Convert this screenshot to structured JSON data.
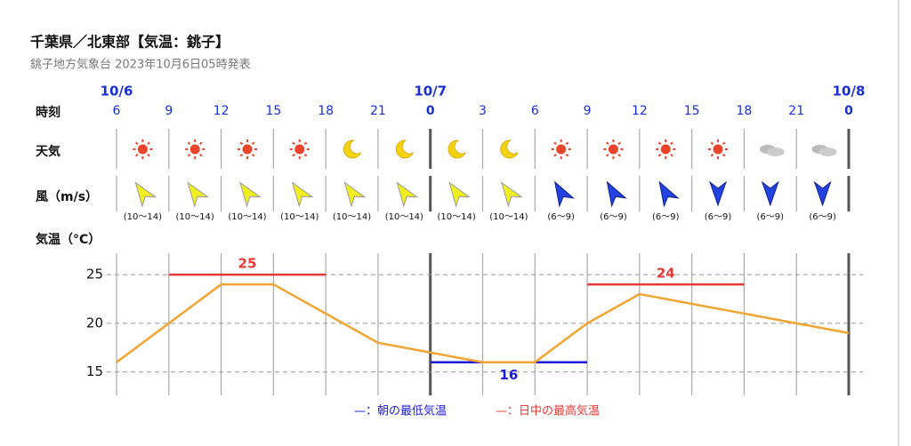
{
  "header": {
    "title": "千葉県／北東部【気温：銚子】",
    "subtitle": "銚子地方気象台 2023年10月6日05時発表"
  },
  "rows": {
    "time": "時刻",
    "weather": "天気",
    "wind": "風（m/s）",
    "temp": "気温（°C）"
  },
  "wind": {
    "ranges": [
      "(10〜14)",
      "(10〜14)",
      "(10〜14)",
      "(10〜14)",
      "(10〜14)",
      "(10〜14)",
      "(10〜14)",
      "(10〜14)",
      "(6〜9)",
      "(6〜9)",
      "(6〜9)",
      "(6〜9)",
      "(6〜9)",
      "(6〜9)"
    ]
  },
  "chart_data": {
    "type": "line",
    "dates": [
      "10/6",
      null,
      null,
      null,
      null,
      null,
      "10/7",
      null,
      null,
      null,
      null,
      null,
      null,
      null,
      "10/8"
    ],
    "categories": [
      "6",
      "9",
      "12",
      "15",
      "18",
      "21",
      "0",
      "3",
      "6",
      "9",
      "12",
      "15",
      "18",
      "21",
      "0"
    ],
    "series": [
      {
        "color": "#f0a431",
        "values": [
          16,
          20,
          24,
          24,
          21,
          18,
          17,
          16,
          16,
          20,
          23,
          22,
          21,
          20,
          19
        ]
      }
    ],
    "max_temps": {
      "color": "#e53935",
      "values": [
        25,
        24
      ]
    },
    "min_temps": {
      "color": "#1a1ad8",
      "values": [
        16
      ]
    },
    "legend": [
      "—：朝の最低気温",
      "—：日中の最高気温"
    ],
    "ylim": [
      12.6,
      27.2
    ],
    "yticks": [
      15,
      20,
      25
    ],
    "grid": true
  }
}
